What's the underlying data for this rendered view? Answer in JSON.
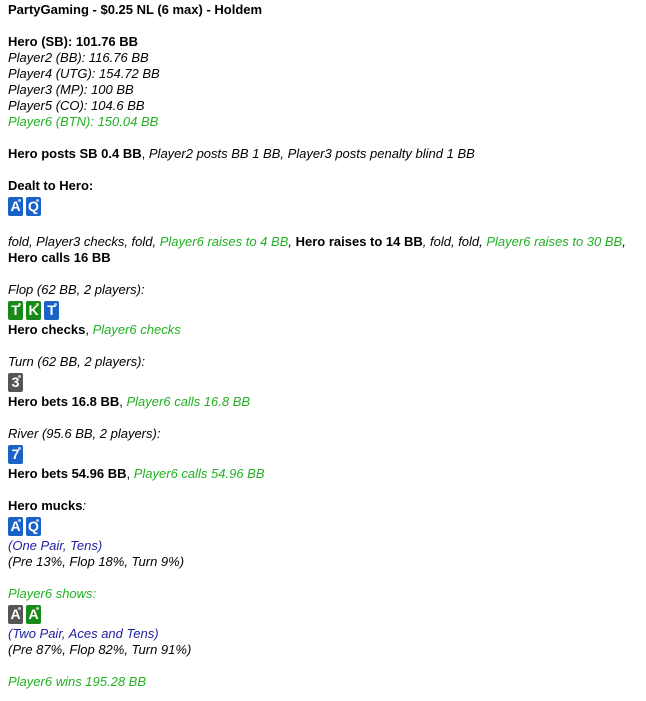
{
  "title": "PartyGaming - $0.25 NL (6 max) - Holdem",
  "players": [
    {
      "text": "Hero (SB): 101.76 BB",
      "style": "b"
    },
    {
      "text": "Player2 (BB): 116.76 BB",
      "style": "i"
    },
    {
      "text": "Player4 (UTG): 154.72 BB",
      "style": "i"
    },
    {
      "text": "Player3 (MP): 100 BB",
      "style": "i"
    },
    {
      "text": "Player5 (CO): 104.6 BB",
      "style": "i"
    },
    {
      "text": "Player6 (BTN): 150.04 BB",
      "style": "g"
    }
  ],
  "suit_colors": {
    "diamonds": "#1a62c8",
    "clubs": "#198a19",
    "spades": "#555555"
  },
  "blocks": [
    {
      "type": "gap"
    },
    {
      "type": "line",
      "parts": [
        {
          "t": "Hero posts SB 0.4 BB",
          "s": "b"
        },
        {
          "t": ", ",
          "s": ""
        },
        {
          "t": "Player2 posts BB 1 BB, Player3 posts penalty blind 1 BB",
          "s": "i"
        }
      ]
    },
    {
      "type": "gap"
    },
    {
      "type": "line",
      "parts": [
        {
          "t": "Dealt to Hero:",
          "s": "b"
        }
      ]
    },
    {
      "type": "cards",
      "cards": [
        {
          "rank": "A",
          "suit": "diamonds"
        },
        {
          "rank": "Q",
          "suit": "diamonds"
        }
      ]
    },
    {
      "type": "gap"
    },
    {
      "type": "line",
      "parts": [
        {
          "t": "fold, Player3 checks, fold, ",
          "s": "i"
        },
        {
          "t": "Player6 raises to 4 BB",
          "s": "g"
        },
        {
          "t": ", ",
          "s": "i"
        },
        {
          "t": "Hero raises to 14 BB",
          "s": "b"
        },
        {
          "t": ", fold, fold, ",
          "s": "i"
        },
        {
          "t": "Player6 raises to 30 BB",
          "s": "g"
        },
        {
          "t": ",",
          "s": "i"
        }
      ]
    },
    {
      "type": "line",
      "parts": [
        {
          "t": "Hero calls 16 BB",
          "s": "b"
        }
      ]
    },
    {
      "type": "gap"
    },
    {
      "type": "line",
      "parts": [
        {
          "t": "Flop (62 BB, 2 players):",
          "s": "i"
        }
      ]
    },
    {
      "type": "cards",
      "cards": [
        {
          "rank": "T",
          "suit": "clubs"
        },
        {
          "rank": "K",
          "suit": "clubs"
        },
        {
          "rank": "T",
          "suit": "diamonds"
        }
      ]
    },
    {
      "type": "line",
      "parts": [
        {
          "t": "Hero checks",
          "s": "b"
        },
        {
          "t": ", ",
          "s": ""
        },
        {
          "t": "Player6 checks",
          "s": "g"
        }
      ]
    },
    {
      "type": "gap"
    },
    {
      "type": "line",
      "parts": [
        {
          "t": "Turn (62 BB, 2 players):",
          "s": "i"
        }
      ]
    },
    {
      "type": "cards",
      "cards": [
        {
          "rank": "3",
          "suit": "spades"
        }
      ]
    },
    {
      "type": "line",
      "parts": [
        {
          "t": "Hero bets 16.8 BB",
          "s": "b"
        },
        {
          "t": ", ",
          "s": ""
        },
        {
          "t": "Player6 calls 16.8 BB",
          "s": "g"
        }
      ]
    },
    {
      "type": "gap"
    },
    {
      "type": "line",
      "parts": [
        {
          "t": "River (95.6 BB, 2 players):",
          "s": "i"
        }
      ]
    },
    {
      "type": "cards",
      "cards": [
        {
          "rank": "7",
          "suit": "diamonds"
        }
      ]
    },
    {
      "type": "line",
      "parts": [
        {
          "t": "Hero bets 54.96 BB",
          "s": "b"
        },
        {
          "t": ", ",
          "s": ""
        },
        {
          "t": "Player6 calls 54.96 BB",
          "s": "g"
        }
      ]
    },
    {
      "type": "gap"
    },
    {
      "type": "line",
      "parts": [
        {
          "t": "Hero mucks",
          "s": "b"
        },
        {
          "t": ":",
          "s": "i"
        }
      ]
    },
    {
      "type": "cards",
      "cards": [
        {
          "rank": "A",
          "suit": "diamonds"
        },
        {
          "rank": "Q",
          "suit": "diamonds"
        }
      ]
    },
    {
      "type": "line",
      "parts": [
        {
          "t": "(One Pair, Tens)",
          "s": "bl"
        }
      ]
    },
    {
      "type": "line",
      "parts": [
        {
          "t": "(Pre 13%, Flop 18%, Turn 9%)",
          "s": "i"
        }
      ]
    },
    {
      "type": "gap"
    },
    {
      "type": "line",
      "parts": [
        {
          "t": "Player6 shows:",
          "s": "g"
        }
      ]
    },
    {
      "type": "cards",
      "cards": [
        {
          "rank": "A",
          "suit": "spades"
        },
        {
          "rank": "A",
          "suit": "clubs"
        }
      ]
    },
    {
      "type": "line",
      "parts": [
        {
          "t": "(Two Pair, Aces and Tens)",
          "s": "bl"
        }
      ]
    },
    {
      "type": "line",
      "parts": [
        {
          "t": "(Pre 87%, Flop 82%, Turn 91%)",
          "s": "i"
        }
      ]
    },
    {
      "type": "gap"
    },
    {
      "type": "line",
      "parts": [
        {
          "t": "Player6 wins 195.28 BB",
          "s": "g"
        }
      ]
    }
  ]
}
